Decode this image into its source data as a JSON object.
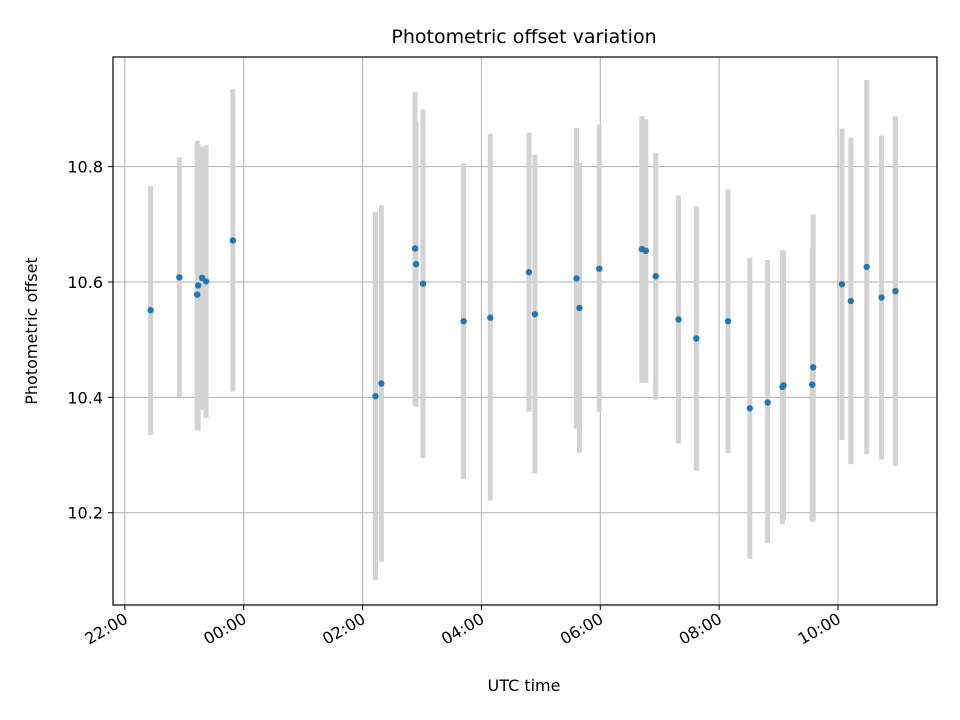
{
  "chart_data": {
    "type": "scatter",
    "title": "Photometric offset variation",
    "xlabel": "UTC time",
    "ylabel": "Photometric offset",
    "x_ticks": [
      "22:00",
      "00:00",
      "02:00",
      "04:00",
      "06:00",
      "08:00",
      "10:00"
    ],
    "y_ticks": [
      "10.2",
      "10.4",
      "10.6",
      "10.8"
    ],
    "xlim": [
      "21:48",
      "11:40"
    ],
    "ylim": [
      10.04,
      10.99
    ],
    "grid": true,
    "point_color": "#1f77b4",
    "errorbar_color": "#d3d3d3",
    "points": [
      {
        "time": "22:26",
        "y": 10.551,
        "err_low": 10.335,
        "err_high": 10.766
      },
      {
        "time": "22:55",
        "y": 10.608,
        "err_low": 10.401,
        "err_high": 10.816
      },
      {
        "time": "23:13",
        "y": 10.578,
        "err_low": 10.343,
        "err_high": 10.845
      },
      {
        "time": "23:14",
        "y": 10.594,
        "err_low": 10.343,
        "err_high": 10.838
      },
      {
        "time": "23:18",
        "y": 10.607,
        "err_low": 10.378,
        "err_high": 10.835
      },
      {
        "time": "23:22",
        "y": 10.601,
        "err_low": 10.364,
        "err_high": 10.837
      },
      {
        "time": "23:49",
        "y": 10.672,
        "err_low": 10.41,
        "err_high": 10.934
      },
      {
        "time": "02:13",
        "y": 10.402,
        "err_low": 10.083,
        "err_high": 10.721
      },
      {
        "time": "02:19",
        "y": 10.424,
        "err_low": 10.115,
        "err_high": 10.733
      },
      {
        "time": "02:53",
        "y": 10.658,
        "err_low": 10.386,
        "err_high": 10.929
      },
      {
        "time": "02:54",
        "y": 10.631,
        "err_low": 10.384,
        "err_high": 10.878
      },
      {
        "time": "03:01",
        "y": 10.597,
        "err_low": 10.295,
        "err_high": 10.899
      },
      {
        "time": "03:42",
        "y": 10.532,
        "err_low": 10.258,
        "err_high": 10.806
      },
      {
        "time": "04:09",
        "y": 10.538,
        "err_low": 10.221,
        "err_high": 10.857
      },
      {
        "time": "04:48",
        "y": 10.617,
        "err_low": 10.375,
        "err_high": 10.859
      },
      {
        "time": "04:54",
        "y": 10.544,
        "err_low": 10.268,
        "err_high": 10.821
      },
      {
        "time": "05:36",
        "y": 10.606,
        "err_low": 10.346,
        "err_high": 10.867
      },
      {
        "time": "05:39",
        "y": 10.555,
        "err_low": 10.304,
        "err_high": 10.806
      },
      {
        "time": "05:59",
        "y": 10.623,
        "err_low": 10.375,
        "err_high": 10.873
      },
      {
        "time": "06:42",
        "y": 10.657,
        "err_low": 10.425,
        "err_high": 10.888
      },
      {
        "time": "06:46",
        "y": 10.654,
        "err_low": 10.425,
        "err_high": 10.882
      },
      {
        "time": "06:56",
        "y": 10.61,
        "err_low": 10.396,
        "err_high": 10.823
      },
      {
        "time": "07:19",
        "y": 10.535,
        "err_low": 10.32,
        "err_high": 10.75
      },
      {
        "time": "07:37",
        "y": 10.502,
        "err_low": 10.273,
        "err_high": 10.731
      },
      {
        "time": "08:09",
        "y": 10.532,
        "err_low": 10.303,
        "err_high": 10.76
      },
      {
        "time": "08:31",
        "y": 10.381,
        "err_low": 10.12,
        "err_high": 10.642
      },
      {
        "time": "08:49",
        "y": 10.391,
        "err_low": 10.147,
        "err_high": 10.638
      },
      {
        "time": "09:04",
        "y": 10.418,
        "err_low": 10.18,
        "err_high": 10.655
      },
      {
        "time": "09:05",
        "y": 10.421,
        "err_low": 10.188,
        "err_high": 10.653
      },
      {
        "time": "09:34",
        "y": 10.422,
        "err_low": 10.184,
        "err_high": 10.66
      },
      {
        "time": "09:35",
        "y": 10.452,
        "err_low": 10.186,
        "err_high": 10.717
      },
      {
        "time": "10:04",
        "y": 10.596,
        "err_low": 10.326,
        "err_high": 10.866
      },
      {
        "time": "10:13",
        "y": 10.567,
        "err_low": 10.284,
        "err_high": 10.85
      },
      {
        "time": "10:29",
        "y": 10.626,
        "err_low": 10.302,
        "err_high": 10.95
      },
      {
        "time": "10:44",
        "y": 10.573,
        "err_low": 10.292,
        "err_high": 10.854
      },
      {
        "time": "10:58",
        "y": 10.584,
        "err_low": 10.281,
        "err_high": 10.887
      }
    ]
  }
}
